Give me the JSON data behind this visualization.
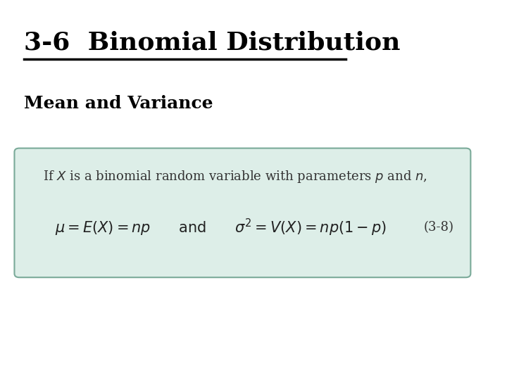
{
  "title": "3-6  Binomial Distribution",
  "subtitle": "Mean and Variance",
  "background_color": "#ffffff",
  "title_color": "#000000",
  "subtitle_color": "#000000",
  "box_bg_color": "#ddeee8",
  "box_edge_color": "#7aaa99",
  "intro_text": "If $X$ is a binomial random variable with parameters $p$ and $n$,",
  "formula": "$\\mu = E(X) = np \\qquad \\mathrm{and} \\qquad \\sigma^2 = V(X) = np(1-p)$",
  "eq_number": "(3-8)",
  "title_fontsize": 26,
  "subtitle_fontsize": 18,
  "intro_fontsize": 13,
  "formula_fontsize": 15,
  "eq_num_fontsize": 13
}
